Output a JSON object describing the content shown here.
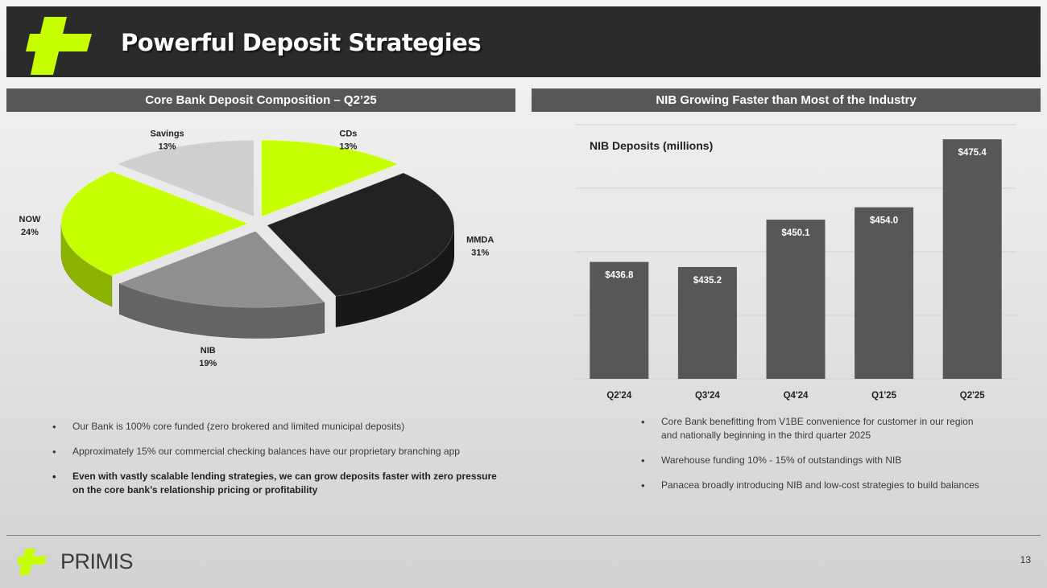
{
  "slide": {
    "title": "Powerful Deposit Strategies",
    "page_number": "13"
  },
  "brand": {
    "name": "PRIMIS",
    "colors": {
      "accent": "#c6ff00",
      "dark": "#2b2b2b",
      "panel": "#575757"
    }
  },
  "left_panel": {
    "heading": "Core Bank Deposit Composition – Q2’25",
    "bullets": [
      {
        "text": "Our Bank is 100% core funded (zero brokered and limited municipal deposits)",
        "bold": false
      },
      {
        "text": "Approximately 15% our commercial checking balances have our proprietary branching app",
        "bold": false
      },
      {
        "text": "Even with vastly scalable lending strategies, we can grow deposits faster with zero pressure on the core bank’s relationship pricing or profitability",
        "bold": true
      }
    ]
  },
  "right_panel": {
    "heading": "NIB Growing Faster than Most of the Industry",
    "bullets": [
      {
        "text": "Core Bank benefitting from V1BE convenience for customer in our region and nationally beginning in the third quarter 2025",
        "bold": false
      },
      {
        "text": "Warehouse funding 10% - 15% of outstandings with NIB",
        "bold": false
      },
      {
        "text": "Panacea broadly introducing NIB and low-cost strategies to build balances",
        "bold": false
      }
    ]
  },
  "chart_data": [
    {
      "type": "pie",
      "style": "3d-exploded",
      "labels": [
        "CDs",
        "MMDA",
        "NIB",
        "NOW",
        "Savings"
      ],
      "values": [
        13,
        31,
        19,
        24,
        13
      ],
      "value_labels": [
        "13%",
        "31%",
        "19%",
        "24%",
        "13%"
      ],
      "colors": [
        "#c6ff00",
        "#222222",
        "#8f8f8f",
        "#c6ff00",
        "#cfcfcf"
      ]
    },
    {
      "type": "bar",
      "title": "NIB Deposits (millions)",
      "categories": [
        "Q2'24",
        "Q3'24",
        "Q4'24",
        "Q1'25",
        "Q2'25"
      ],
      "values": [
        436.8,
        435.2,
        450.1,
        454.0,
        475.4
      ],
      "value_labels": [
        "$436.8",
        "$435.2",
        "$450.1",
        "$454.0",
        "$475.4"
      ],
      "ylim": [
        400,
        480
      ],
      "grid": true,
      "color": "#575757"
    }
  ]
}
